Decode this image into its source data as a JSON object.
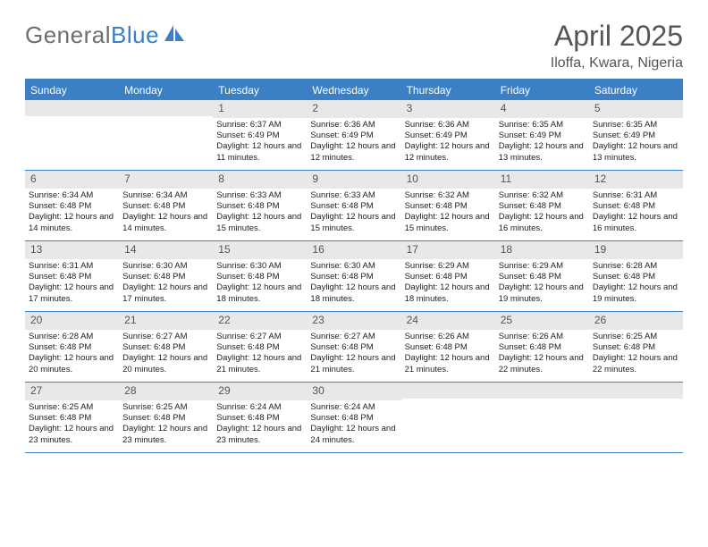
{
  "logo": {
    "textGray": "General",
    "textBlue": "Blue"
  },
  "title": "April 2025",
  "location": "Iloffa, Kwara, Nigeria",
  "colors": {
    "header_bar": "#3b7fc4",
    "daynum_bg": "#e8e8e8",
    "text": "#333333",
    "title_text": "#555555"
  },
  "weekdays": [
    "Sunday",
    "Monday",
    "Tuesday",
    "Wednesday",
    "Thursday",
    "Friday",
    "Saturday"
  ],
  "weeks": [
    [
      {
        "n": "",
        "sr": "",
        "ss": "",
        "dl": ""
      },
      {
        "n": "",
        "sr": "",
        "ss": "",
        "dl": ""
      },
      {
        "n": "1",
        "sr": "Sunrise: 6:37 AM",
        "ss": "Sunset: 6:49 PM",
        "dl": "Daylight: 12 hours and 11 minutes."
      },
      {
        "n": "2",
        "sr": "Sunrise: 6:36 AM",
        "ss": "Sunset: 6:49 PM",
        "dl": "Daylight: 12 hours and 12 minutes."
      },
      {
        "n": "3",
        "sr": "Sunrise: 6:36 AM",
        "ss": "Sunset: 6:49 PM",
        "dl": "Daylight: 12 hours and 12 minutes."
      },
      {
        "n": "4",
        "sr": "Sunrise: 6:35 AM",
        "ss": "Sunset: 6:49 PM",
        "dl": "Daylight: 12 hours and 13 minutes."
      },
      {
        "n": "5",
        "sr": "Sunrise: 6:35 AM",
        "ss": "Sunset: 6:49 PM",
        "dl": "Daylight: 12 hours and 13 minutes."
      }
    ],
    [
      {
        "n": "6",
        "sr": "Sunrise: 6:34 AM",
        "ss": "Sunset: 6:48 PM",
        "dl": "Daylight: 12 hours and 14 minutes."
      },
      {
        "n": "7",
        "sr": "Sunrise: 6:34 AM",
        "ss": "Sunset: 6:48 PM",
        "dl": "Daylight: 12 hours and 14 minutes."
      },
      {
        "n": "8",
        "sr": "Sunrise: 6:33 AM",
        "ss": "Sunset: 6:48 PM",
        "dl": "Daylight: 12 hours and 15 minutes."
      },
      {
        "n": "9",
        "sr": "Sunrise: 6:33 AM",
        "ss": "Sunset: 6:48 PM",
        "dl": "Daylight: 12 hours and 15 minutes."
      },
      {
        "n": "10",
        "sr": "Sunrise: 6:32 AM",
        "ss": "Sunset: 6:48 PM",
        "dl": "Daylight: 12 hours and 15 minutes."
      },
      {
        "n": "11",
        "sr": "Sunrise: 6:32 AM",
        "ss": "Sunset: 6:48 PM",
        "dl": "Daylight: 12 hours and 16 minutes."
      },
      {
        "n": "12",
        "sr": "Sunrise: 6:31 AM",
        "ss": "Sunset: 6:48 PM",
        "dl": "Daylight: 12 hours and 16 minutes."
      }
    ],
    [
      {
        "n": "13",
        "sr": "Sunrise: 6:31 AM",
        "ss": "Sunset: 6:48 PM",
        "dl": "Daylight: 12 hours and 17 minutes."
      },
      {
        "n": "14",
        "sr": "Sunrise: 6:30 AM",
        "ss": "Sunset: 6:48 PM",
        "dl": "Daylight: 12 hours and 17 minutes."
      },
      {
        "n": "15",
        "sr": "Sunrise: 6:30 AM",
        "ss": "Sunset: 6:48 PM",
        "dl": "Daylight: 12 hours and 18 minutes."
      },
      {
        "n": "16",
        "sr": "Sunrise: 6:30 AM",
        "ss": "Sunset: 6:48 PM",
        "dl": "Daylight: 12 hours and 18 minutes."
      },
      {
        "n": "17",
        "sr": "Sunrise: 6:29 AM",
        "ss": "Sunset: 6:48 PM",
        "dl": "Daylight: 12 hours and 18 minutes."
      },
      {
        "n": "18",
        "sr": "Sunrise: 6:29 AM",
        "ss": "Sunset: 6:48 PM",
        "dl": "Daylight: 12 hours and 19 minutes."
      },
      {
        "n": "19",
        "sr": "Sunrise: 6:28 AM",
        "ss": "Sunset: 6:48 PM",
        "dl": "Daylight: 12 hours and 19 minutes."
      }
    ],
    [
      {
        "n": "20",
        "sr": "Sunrise: 6:28 AM",
        "ss": "Sunset: 6:48 PM",
        "dl": "Daylight: 12 hours and 20 minutes."
      },
      {
        "n": "21",
        "sr": "Sunrise: 6:27 AM",
        "ss": "Sunset: 6:48 PM",
        "dl": "Daylight: 12 hours and 20 minutes."
      },
      {
        "n": "22",
        "sr": "Sunrise: 6:27 AM",
        "ss": "Sunset: 6:48 PM",
        "dl": "Daylight: 12 hours and 21 minutes."
      },
      {
        "n": "23",
        "sr": "Sunrise: 6:27 AM",
        "ss": "Sunset: 6:48 PM",
        "dl": "Daylight: 12 hours and 21 minutes."
      },
      {
        "n": "24",
        "sr": "Sunrise: 6:26 AM",
        "ss": "Sunset: 6:48 PM",
        "dl": "Daylight: 12 hours and 21 minutes."
      },
      {
        "n": "25",
        "sr": "Sunrise: 6:26 AM",
        "ss": "Sunset: 6:48 PM",
        "dl": "Daylight: 12 hours and 22 minutes."
      },
      {
        "n": "26",
        "sr": "Sunrise: 6:25 AM",
        "ss": "Sunset: 6:48 PM",
        "dl": "Daylight: 12 hours and 22 minutes."
      }
    ],
    [
      {
        "n": "27",
        "sr": "Sunrise: 6:25 AM",
        "ss": "Sunset: 6:48 PM",
        "dl": "Daylight: 12 hours and 23 minutes."
      },
      {
        "n": "28",
        "sr": "Sunrise: 6:25 AM",
        "ss": "Sunset: 6:48 PM",
        "dl": "Daylight: 12 hours and 23 minutes."
      },
      {
        "n": "29",
        "sr": "Sunrise: 6:24 AM",
        "ss": "Sunset: 6:48 PM",
        "dl": "Daylight: 12 hours and 23 minutes."
      },
      {
        "n": "30",
        "sr": "Sunrise: 6:24 AM",
        "ss": "Sunset: 6:48 PM",
        "dl": "Daylight: 12 hours and 24 minutes."
      },
      {
        "n": "",
        "sr": "",
        "ss": "",
        "dl": ""
      },
      {
        "n": "",
        "sr": "",
        "ss": "",
        "dl": ""
      },
      {
        "n": "",
        "sr": "",
        "ss": "",
        "dl": ""
      }
    ]
  ]
}
